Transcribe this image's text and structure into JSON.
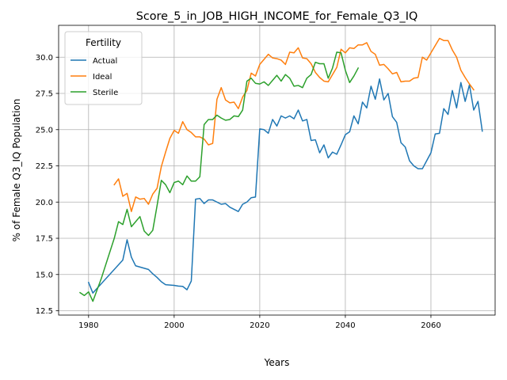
{
  "chart_data": {
    "type": "line",
    "title": "Score_5_in_JOB_HIGH_INCOME_for_Female_Q3_IQ",
    "xlabel": "Years",
    "ylabel": "% of Female Q3_IQ Population",
    "xlim": [
      1973,
      2075
    ],
    "ylim": [
      12.2,
      32.2
    ],
    "xticks": [
      1980,
      2000,
      2020,
      2040,
      2060
    ],
    "yticks": [
      12.5,
      15.0,
      17.5,
      20.0,
      22.5,
      25.0,
      27.5,
      30.0
    ],
    "xtick_labels": [
      "1980",
      "2000",
      "2020",
      "2040",
      "2060"
    ],
    "ytick_labels": [
      "12.5",
      "15.0",
      "17.5",
      "20.0",
      "22.5",
      "25.0",
      "27.5",
      "30.0"
    ],
    "grid": true,
    "legend": {
      "title": "Fertility",
      "placement": "upper-left"
    },
    "series": [
      {
        "name": "Actual",
        "color": "#1f77b4",
        "points": [
          [
            1980,
            14.45
          ],
          [
            1981,
            13.72
          ],
          [
            1982,
            14.05
          ],
          [
            1988,
            16.0
          ],
          [
            1989,
            17.4
          ],
          [
            1990,
            16.2
          ],
          [
            1991,
            15.6
          ],
          [
            1994,
            15.35
          ],
          [
            1995,
            15.05
          ],
          [
            1996,
            14.8
          ],
          [
            1997,
            14.5
          ],
          [
            1998,
            14.3
          ],
          [
            2000,
            14.25
          ],
          [
            2001,
            14.2
          ],
          [
            2002,
            14.18
          ],
          [
            2003,
            13.95
          ],
          [
            2004,
            14.55
          ],
          [
            2005,
            20.2
          ],
          [
            2006,
            20.25
          ],
          [
            2007,
            19.9
          ],
          [
            2008,
            20.15
          ],
          [
            2009,
            20.15
          ],
          [
            2010,
            20.0
          ],
          [
            2011,
            19.85
          ],
          [
            2012,
            19.9
          ],
          [
            2013,
            19.65
          ],
          [
            2014,
            19.5
          ],
          [
            2015,
            19.35
          ],
          [
            2016,
            19.85
          ],
          [
            2017,
            20.0
          ],
          [
            2018,
            20.3
          ],
          [
            2019,
            20.35
          ],
          [
            2020,
            25.05
          ],
          [
            2021,
            25.0
          ],
          [
            2022,
            24.75
          ],
          [
            2023,
            25.7
          ],
          [
            2024,
            25.25
          ],
          [
            2025,
            25.95
          ],
          [
            2026,
            25.8
          ],
          [
            2027,
            25.95
          ],
          [
            2028,
            25.75
          ],
          [
            2029,
            26.35
          ],
          [
            2030,
            25.6
          ],
          [
            2031,
            25.7
          ],
          [
            2032,
            24.25
          ],
          [
            2033,
            24.3
          ],
          [
            2034,
            23.4
          ],
          [
            2035,
            23.95
          ],
          [
            2036,
            23.05
          ],
          [
            2037,
            23.45
          ],
          [
            2038,
            23.3
          ],
          [
            2039,
            23.95
          ],
          [
            2040,
            24.65
          ],
          [
            2041,
            24.85
          ],
          [
            2042,
            25.95
          ],
          [
            2043,
            25.4
          ],
          [
            2044,
            26.9
          ],
          [
            2045,
            26.5
          ],
          [
            2046,
            28.0
          ],
          [
            2047,
            27.1
          ],
          [
            2048,
            28.5
          ],
          [
            2049,
            27.05
          ],
          [
            2050,
            27.5
          ],
          [
            2051,
            25.9
          ],
          [
            2052,
            25.5
          ],
          [
            2053,
            24.1
          ],
          [
            2054,
            23.8
          ],
          [
            2055,
            22.85
          ],
          [
            2056,
            22.5
          ],
          [
            2057,
            22.3
          ],
          [
            2058,
            22.3
          ],
          [
            2059,
            22.85
          ],
          [
            2060,
            23.4
          ],
          [
            2061,
            24.7
          ],
          [
            2062,
            24.75
          ],
          [
            2063,
            26.45
          ],
          [
            2064,
            26.05
          ],
          [
            2065,
            27.7
          ],
          [
            2066,
            26.5
          ],
          [
            2067,
            28.25
          ],
          [
            2068,
            26.95
          ],
          [
            2069,
            28.1
          ],
          [
            2070,
            26.35
          ],
          [
            2071,
            26.95
          ],
          [
            2072,
            24.9
          ]
        ]
      },
      {
        "name": "Ideal",
        "color": "#ff7f0e",
        "points": [
          [
            1986,
            21.2
          ],
          [
            1987,
            21.6
          ],
          [
            1988,
            20.4
          ],
          [
            1989,
            20.6
          ],
          [
            1990,
            19.35
          ],
          [
            1991,
            20.35
          ],
          [
            1992,
            20.2
          ],
          [
            1993,
            20.25
          ],
          [
            1994,
            19.85
          ],
          [
            1995,
            20.55
          ],
          [
            1996,
            20.95
          ],
          [
            1997,
            22.45
          ],
          [
            1998,
            23.45
          ],
          [
            1999,
            24.4
          ],
          [
            2000,
            24.95
          ],
          [
            2001,
            24.75
          ],
          [
            2002,
            25.55
          ],
          [
            2003,
            25.0
          ],
          [
            2004,
            24.8
          ],
          [
            2005,
            24.5
          ],
          [
            2006,
            24.5
          ],
          [
            2007,
            24.35
          ],
          [
            2008,
            23.95
          ],
          [
            2009,
            24.05
          ],
          [
            2010,
            27.1
          ],
          [
            2011,
            27.9
          ],
          [
            2012,
            27.05
          ],
          [
            2013,
            26.85
          ],
          [
            2014,
            26.9
          ],
          [
            2015,
            26.45
          ],
          [
            2016,
            27.25
          ],
          [
            2017,
            27.7
          ],
          [
            2018,
            28.9
          ],
          [
            2019,
            28.7
          ],
          [
            2020,
            29.5
          ],
          [
            2021,
            29.85
          ],
          [
            2022,
            30.2
          ],
          [
            2023,
            29.95
          ],
          [
            2024,
            29.9
          ],
          [
            2025,
            29.8
          ],
          [
            2026,
            29.5
          ],
          [
            2027,
            30.35
          ],
          [
            2028,
            30.3
          ],
          [
            2029,
            30.65
          ],
          [
            2030,
            29.95
          ],
          [
            2031,
            29.9
          ],
          [
            2032,
            29.55
          ],
          [
            2033,
            28.95
          ],
          [
            2034,
            28.6
          ],
          [
            2035,
            28.35
          ],
          [
            2036,
            28.3
          ],
          [
            2037,
            28.8
          ],
          [
            2038,
            29.3
          ],
          [
            2039,
            30.55
          ],
          [
            2040,
            30.3
          ],
          [
            2041,
            30.65
          ],
          [
            2042,
            30.6
          ],
          [
            2043,
            30.85
          ],
          [
            2044,
            30.85
          ],
          [
            2045,
            31.0
          ],
          [
            2046,
            30.4
          ],
          [
            2047,
            30.2
          ],
          [
            2048,
            29.45
          ],
          [
            2049,
            29.5
          ],
          [
            2050,
            29.2
          ],
          [
            2051,
            28.85
          ],
          [
            2052,
            28.95
          ],
          [
            2053,
            28.3
          ],
          [
            2054,
            28.35
          ],
          [
            2055,
            28.35
          ],
          [
            2056,
            28.55
          ],
          [
            2057,
            28.6
          ],
          [
            2058,
            30.0
          ],
          [
            2059,
            29.8
          ],
          [
            2060,
            30.3
          ],
          [
            2061,
            30.8
          ],
          [
            2062,
            31.3
          ],
          [
            2063,
            31.15
          ],
          [
            2064,
            31.15
          ],
          [
            2065,
            30.5
          ],
          [
            2066,
            30.0
          ],
          [
            2067,
            29.1
          ],
          [
            2068,
            28.6
          ],
          [
            2069,
            28.15
          ],
          [
            2070,
            27.75
          ]
        ]
      },
      {
        "name": "Sterile",
        "color": "#2ca02c",
        "points": [
          [
            1978,
            13.75
          ],
          [
            1979,
            13.55
          ],
          [
            1980,
            13.8
          ],
          [
            1981,
            13.15
          ],
          [
            1983,
            14.75
          ],
          [
            1986,
            17.5
          ],
          [
            1987,
            18.65
          ],
          [
            1988,
            18.45
          ],
          [
            1989,
            19.5
          ],
          [
            1990,
            18.3
          ],
          [
            1991,
            18.65
          ],
          [
            1992,
            19.0
          ],
          [
            1993,
            18.0
          ],
          [
            1994,
            17.7
          ],
          [
            1995,
            18.05
          ],
          [
            1996,
            19.75
          ],
          [
            1997,
            21.5
          ],
          [
            1998,
            21.2
          ],
          [
            1999,
            20.65
          ],
          [
            2000,
            21.35
          ],
          [
            2001,
            21.45
          ],
          [
            2002,
            21.2
          ],
          [
            2003,
            21.8
          ],
          [
            2004,
            21.45
          ],
          [
            2005,
            21.45
          ],
          [
            2006,
            21.75
          ],
          [
            2007,
            25.35
          ],
          [
            2008,
            25.7
          ],
          [
            2009,
            25.7
          ],
          [
            2010,
            26.0
          ],
          [
            2011,
            25.8
          ],
          [
            2012,
            25.65
          ],
          [
            2013,
            25.7
          ],
          [
            2014,
            25.95
          ],
          [
            2015,
            25.9
          ],
          [
            2016,
            26.35
          ],
          [
            2017,
            28.35
          ],
          [
            2018,
            28.55
          ],
          [
            2019,
            28.2
          ],
          [
            2020,
            28.15
          ],
          [
            2021,
            28.3
          ],
          [
            2022,
            28.05
          ],
          [
            2023,
            28.4
          ],
          [
            2024,
            28.75
          ],
          [
            2025,
            28.35
          ],
          [
            2026,
            28.8
          ],
          [
            2027,
            28.55
          ],
          [
            2028,
            28.0
          ],
          [
            2029,
            28.05
          ],
          [
            2030,
            27.9
          ],
          [
            2031,
            28.55
          ],
          [
            2032,
            28.8
          ],
          [
            2033,
            29.65
          ],
          [
            2034,
            29.55
          ],
          [
            2035,
            29.55
          ],
          [
            2036,
            28.55
          ],
          [
            2037,
            29.25
          ],
          [
            2038,
            30.35
          ],
          [
            2039,
            30.3
          ],
          [
            2040,
            29.1
          ],
          [
            2041,
            28.25
          ],
          [
            2042,
            28.7
          ],
          [
            2043,
            29.25
          ]
        ]
      }
    ]
  }
}
